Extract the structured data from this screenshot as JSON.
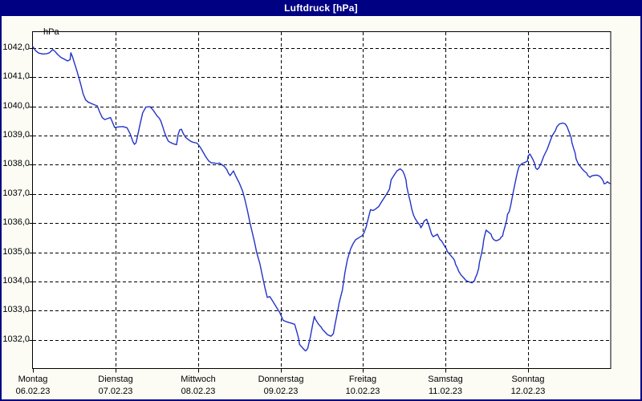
{
  "window": {
    "title": "Luftdruck [hPa]"
  },
  "chart_data": {
    "type": "line",
    "title": "Luftdruck [hPa]",
    "ylabel": "hPa",
    "xlabel": "",
    "ylim": [
      1031.0,
      1042.6
    ],
    "grid": "dashed-black",
    "legend": "none",
    "y_ticks_values": [
      1042,
      1041,
      1040,
      1039,
      1038,
      1037,
      1036,
      1035,
      1034,
      1033,
      1032
    ],
    "y_tick_labels": [
      "1042,0",
      "1041,0",
      "1040,0",
      "1039,0",
      "1038,0",
      "1037,0",
      "1036,0",
      "1035,0",
      "1034,0",
      "1033,0",
      "1032,0"
    ],
    "days": [
      {
        "name": "Montag",
        "date": "06.02.23"
      },
      {
        "name": "Dienstag",
        "date": "07.02.23"
      },
      {
        "name": "Mittwoch",
        "date": "08.02.23"
      },
      {
        "name": "Donnerstag",
        "date": "09.02.23"
      },
      {
        "name": "Freitag",
        "date": "10.02.23"
      },
      {
        "name": "Samstag",
        "date": "11.02.23"
      },
      {
        "name": "Sonntag",
        "date": "12.02.23"
      }
    ],
    "colors": {
      "line": "#2233c8",
      "titlebar": "#000083",
      "plot_bg": "#ffffff",
      "window_bg": "#fcfcf5",
      "grid": "#000000"
    },
    "series": [
      {
        "name": "Luftdruck",
        "unit": "hPa",
        "x_unit": "days since 06.02.23 00:00",
        "points": [
          [
            0.0,
            1042.05
          ],
          [
            0.03,
            1041.92
          ],
          [
            0.07,
            1041.83
          ],
          [
            0.12,
            1041.8
          ],
          [
            0.17,
            1041.81
          ],
          [
            0.2,
            1041.84
          ],
          [
            0.24,
            1041.95
          ],
          [
            0.27,
            1041.88
          ],
          [
            0.3,
            1041.78
          ],
          [
            0.34,
            1041.68
          ],
          [
            0.38,
            1041.62
          ],
          [
            0.42,
            1041.56
          ],
          [
            0.45,
            1041.6
          ],
          [
            0.46,
            1041.84
          ],
          [
            0.48,
            1041.7
          ],
          [
            0.5,
            1041.52
          ],
          [
            0.53,
            1041.25
          ],
          [
            0.55,
            1041.05
          ],
          [
            0.58,
            1040.75
          ],
          [
            0.61,
            1040.42
          ],
          [
            0.64,
            1040.22
          ],
          [
            0.67,
            1040.15
          ],
          [
            0.71,
            1040.1
          ],
          [
            0.75,
            1040.05
          ],
          [
            0.78,
            1040.02
          ],
          [
            0.81,
            1039.8
          ],
          [
            0.84,
            1039.62
          ],
          [
            0.87,
            1039.55
          ],
          [
            0.9,
            1039.58
          ],
          [
            0.94,
            1039.62
          ],
          [
            0.99,
            1039.28
          ],
          [
            1.04,
            1039.3
          ],
          [
            1.09,
            1039.31
          ],
          [
            1.14,
            1039.27
          ],
          [
            1.18,
            1039.05
          ],
          [
            1.21,
            1038.8
          ],
          [
            1.23,
            1038.7
          ],
          [
            1.25,
            1038.76
          ],
          [
            1.3,
            1039.41
          ],
          [
            1.33,
            1039.78
          ],
          [
            1.37,
            1039.98
          ],
          [
            1.42,
            1039.99
          ],
          [
            1.45,
            1039.9
          ],
          [
            1.47,
            1039.82
          ],
          [
            1.5,
            1039.69
          ],
          [
            1.53,
            1039.6
          ],
          [
            1.55,
            1039.5
          ],
          [
            1.57,
            1039.33
          ],
          [
            1.59,
            1039.15
          ],
          [
            1.61,
            1038.99
          ],
          [
            1.64,
            1038.81
          ],
          [
            1.67,
            1038.76
          ],
          [
            1.71,
            1038.71
          ],
          [
            1.74,
            1038.69
          ],
          [
            1.76,
            1039.04
          ],
          [
            1.78,
            1039.2
          ],
          [
            1.8,
            1039.22
          ],
          [
            1.82,
            1039.08
          ],
          [
            1.85,
            1038.94
          ],
          [
            1.88,
            1038.87
          ],
          [
            1.91,
            1038.81
          ],
          [
            1.93,
            1038.78
          ],
          [
            1.96,
            1038.76
          ],
          [
            1.99,
            1038.74
          ],
          [
            2.03,
            1038.59
          ],
          [
            2.06,
            1038.44
          ],
          [
            2.1,
            1038.25
          ],
          [
            2.13,
            1038.13
          ],
          [
            2.16,
            1038.07
          ],
          [
            2.2,
            1038.06
          ],
          [
            2.23,
            1038.04
          ],
          [
            2.26,
            1038.06
          ],
          [
            2.29,
            1038.0
          ],
          [
            2.32,
            1037.94
          ],
          [
            2.35,
            1037.83
          ],
          [
            2.37,
            1037.7
          ],
          [
            2.39,
            1037.63
          ],
          [
            2.43,
            1037.79
          ],
          [
            2.46,
            1037.6
          ],
          [
            2.5,
            1037.38
          ],
          [
            2.54,
            1037.1
          ],
          [
            2.57,
            1036.79
          ],
          [
            2.6,
            1036.42
          ],
          [
            2.63,
            1036.01
          ],
          [
            2.66,
            1035.65
          ],
          [
            2.69,
            1035.28
          ],
          [
            2.71,
            1035.01
          ],
          [
            2.75,
            1034.6
          ],
          [
            2.78,
            1034.2
          ],
          [
            2.81,
            1033.8
          ],
          [
            2.84,
            1033.45
          ],
          [
            2.87,
            1033.48
          ],
          [
            2.91,
            1033.3
          ],
          [
            2.96,
            1033.07
          ],
          [
            2.99,
            1032.94
          ],
          [
            3.03,
            1032.67
          ],
          [
            3.07,
            1032.62
          ],
          [
            3.1,
            1032.59
          ],
          [
            3.13,
            1032.57
          ],
          [
            3.17,
            1032.53
          ],
          [
            3.18,
            1032.44
          ],
          [
            3.2,
            1032.25
          ],
          [
            3.22,
            1032.03
          ],
          [
            3.23,
            1031.84
          ],
          [
            3.27,
            1031.71
          ],
          [
            3.3,
            1031.62
          ],
          [
            3.31,
            1031.63
          ],
          [
            3.33,
            1031.71
          ],
          [
            3.36,
            1032.08
          ],
          [
            3.39,
            1032.53
          ],
          [
            3.41,
            1032.8
          ],
          [
            3.42,
            1032.71
          ],
          [
            3.46,
            1032.53
          ],
          [
            3.49,
            1032.44
          ],
          [
            3.51,
            1032.35
          ],
          [
            3.54,
            1032.26
          ],
          [
            3.57,
            1032.17
          ],
          [
            3.61,
            1032.12
          ],
          [
            3.62,
            1032.14
          ],
          [
            3.64,
            1032.21
          ],
          [
            3.66,
            1032.53
          ],
          [
            3.68,
            1032.8
          ],
          [
            3.71,
            1033.26
          ],
          [
            3.75,
            1033.71
          ],
          [
            3.78,
            1034.3
          ],
          [
            3.81,
            1034.75
          ],
          [
            3.85,
            1035.12
          ],
          [
            3.88,
            1035.3
          ],
          [
            3.91,
            1035.43
          ],
          [
            3.95,
            1035.5
          ],
          [
            3.99,
            1035.57
          ],
          [
            4.01,
            1035.66
          ],
          [
            4.04,
            1035.89
          ],
          [
            4.05,
            1036.02
          ],
          [
            4.09,
            1036.46
          ],
          [
            4.12,
            1036.43
          ],
          [
            4.15,
            1036.48
          ],
          [
            4.19,
            1036.57
          ],
          [
            4.22,
            1036.71
          ],
          [
            4.25,
            1036.84
          ],
          [
            4.29,
            1037.02
          ],
          [
            4.32,
            1037.16
          ],
          [
            4.34,
            1037.48
          ],
          [
            4.38,
            1037.66
          ],
          [
            4.41,
            1037.79
          ],
          [
            4.45,
            1037.86
          ],
          [
            4.48,
            1037.79
          ],
          [
            4.5,
            1037.66
          ],
          [
            4.52,
            1037.48
          ],
          [
            4.53,
            1037.25
          ],
          [
            4.55,
            1036.98
          ],
          [
            4.57,
            1036.75
          ],
          [
            4.59,
            1036.48
          ],
          [
            4.61,
            1036.28
          ],
          [
            4.63,
            1036.16
          ],
          [
            4.66,
            1036.02
          ],
          [
            4.69,
            1035.93
          ],
          [
            4.7,
            1035.84
          ],
          [
            4.72,
            1035.93
          ],
          [
            4.74,
            1036.07
          ],
          [
            4.77,
            1036.13
          ],
          [
            4.8,
            1035.9
          ],
          [
            4.83,
            1035.62
          ],
          [
            4.85,
            1035.53
          ],
          [
            4.9,
            1035.62
          ],
          [
            4.93,
            1035.44
          ],
          [
            4.95,
            1035.39
          ],
          [
            4.97,
            1035.3
          ],
          [
            4.99,
            1035.19
          ],
          [
            5.01,
            1035.12
          ],
          [
            5.02,
            1035.03
          ],
          [
            5.05,
            1034.93
          ],
          [
            5.07,
            1034.86
          ],
          [
            5.09,
            1034.8
          ],
          [
            5.11,
            1034.71
          ],
          [
            5.12,
            1034.59
          ],
          [
            5.14,
            1034.48
          ],
          [
            5.16,
            1034.34
          ],
          [
            5.19,
            1034.21
          ],
          [
            5.22,
            1034.12
          ],
          [
            5.24,
            1034.05
          ],
          [
            5.26,
            1034.01
          ],
          [
            5.29,
            1033.98
          ],
          [
            5.32,
            1033.95
          ],
          [
            5.33,
            1033.98
          ],
          [
            5.35,
            1034.03
          ],
          [
            5.36,
            1034.12
          ],
          [
            5.38,
            1034.25
          ],
          [
            5.4,
            1034.44
          ],
          [
            5.41,
            1034.66
          ],
          [
            5.43,
            1034.89
          ],
          [
            5.45,
            1035.17
          ],
          [
            5.46,
            1035.39
          ],
          [
            5.47,
            1035.53
          ],
          [
            5.49,
            1035.76
          ],
          [
            5.52,
            1035.69
          ],
          [
            5.55,
            1035.62
          ],
          [
            5.56,
            1035.53
          ],
          [
            5.58,
            1035.44
          ],
          [
            5.61,
            1035.39
          ],
          [
            5.64,
            1035.42
          ],
          [
            5.66,
            1035.46
          ],
          [
            5.67,
            1035.51
          ],
          [
            5.69,
            1035.56
          ],
          [
            5.7,
            1035.69
          ],
          [
            5.72,
            1035.88
          ],
          [
            5.74,
            1036.11
          ],
          [
            5.75,
            1036.3
          ],
          [
            5.77,
            1036.39
          ],
          [
            5.79,
            1036.62
          ],
          [
            5.82,
            1037.07
          ],
          [
            5.85,
            1037.48
          ],
          [
            5.87,
            1037.75
          ],
          [
            5.89,
            1037.94
          ],
          [
            5.92,
            1038.03
          ],
          [
            5.95,
            1038.07
          ],
          [
            5.99,
            1038.12
          ],
          [
            6.0,
            1038.3
          ],
          [
            6.02,
            1038.37
          ],
          [
            6.03,
            1038.33
          ],
          [
            6.06,
            1038.17
          ],
          [
            6.08,
            1038.03
          ],
          [
            6.09,
            1037.89
          ],
          [
            6.11,
            1037.84
          ],
          [
            6.13,
            1037.89
          ],
          [
            6.16,
            1038.07
          ],
          [
            6.19,
            1038.3
          ],
          [
            6.23,
            1038.53
          ],
          [
            6.26,
            1038.76
          ],
          [
            6.29,
            1038.99
          ],
          [
            6.33,
            1039.17
          ],
          [
            6.35,
            1039.31
          ],
          [
            6.38,
            1039.4
          ],
          [
            6.42,
            1039.43
          ],
          [
            6.45,
            1039.4
          ],
          [
            6.47,
            1039.31
          ],
          [
            6.49,
            1039.17
          ],
          [
            6.52,
            1038.94
          ],
          [
            6.53,
            1038.76
          ],
          [
            6.55,
            1038.57
          ],
          [
            6.57,
            1038.39
          ],
          [
            6.58,
            1038.21
          ],
          [
            6.6,
            1038.07
          ],
          [
            6.62,
            1037.98
          ],
          [
            6.64,
            1037.91
          ],
          [
            6.66,
            1037.84
          ],
          [
            6.68,
            1037.78
          ],
          [
            6.71,
            1037.71
          ],
          [
            6.72,
            1037.64
          ],
          [
            6.75,
            1037.57
          ],
          [
            6.77,
            1037.62
          ],
          [
            6.81,
            1037.64
          ],
          [
            6.84,
            1037.64
          ],
          [
            6.87,
            1037.6
          ],
          [
            6.89,
            1037.53
          ],
          [
            6.91,
            1037.44
          ],
          [
            6.92,
            1037.35
          ],
          [
            6.94,
            1037.36
          ],
          [
            6.96,
            1037.42
          ],
          [
            6.97,
            1037.39
          ],
          [
            6.99,
            1037.36
          ]
        ]
      }
    ]
  }
}
